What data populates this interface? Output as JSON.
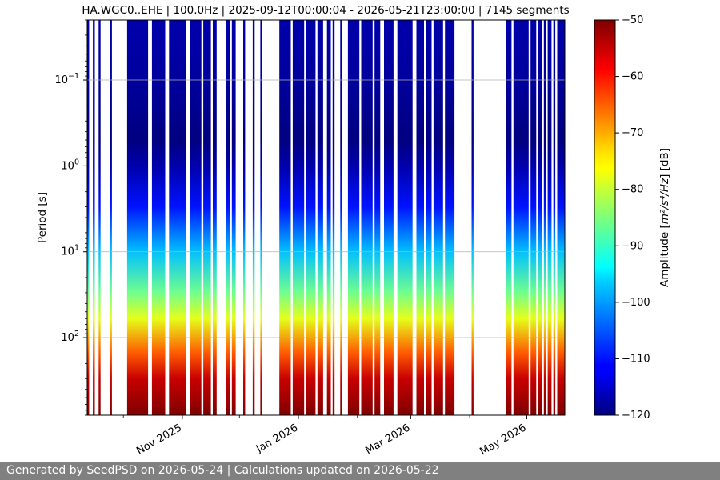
{
  "chart_data": {
    "type": "heatmap",
    "title": "HA.WGC0..EHE | 100.0Hz | 2025-09-12T00:00:04 - 2026-05-21T23:00:00 | 7145 segments",
    "xlabel": "",
    "ylabel": "Period [s]",
    "x_range": [
      "2025-09-12",
      "2026-05-21"
    ],
    "x_ticks": [
      {
        "date": "2025-11-01",
        "label": "Nov 2025"
      },
      {
        "date": "2026-01-01",
        "label": "Jan 2026"
      },
      {
        "date": "2026-03-01",
        "label": "Mar 2026"
      },
      {
        "date": "2026-05-01",
        "label": "May 2026"
      }
    ],
    "y_scale": "log",
    "y_inverted": true,
    "y_range": [
      0.02,
      800
    ],
    "y_ticks": [
      {
        "value": 0.1,
        "base": "10",
        "exp": "−1"
      },
      {
        "value": 1,
        "base": "10",
        "exp": "0"
      },
      {
        "value": 10,
        "base": "10",
        "exp": "1"
      },
      {
        "value": 100,
        "base": "10",
        "exp": "2"
      }
    ],
    "grid": true,
    "data_segments": [
      [
        "2025-09-12",
        "2025-09-13"
      ],
      [
        "2025-09-15",
        "2025-09-16"
      ],
      [
        "2025-09-18",
        "2025-09-19"
      ],
      [
        "2025-09-24",
        "2025-09-25"
      ],
      [
        "2025-10-03",
        "2025-10-14"
      ],
      [
        "2025-10-16",
        "2025-10-23"
      ],
      [
        "2025-10-25",
        "2025-11-03"
      ],
      [
        "2025-11-05",
        "2025-11-11"
      ],
      [
        "2025-11-12",
        "2025-11-16"
      ],
      [
        "2025-11-17",
        "2025-11-19"
      ],
      [
        "2025-11-24",
        "2025-11-26"
      ],
      [
        "2025-11-27",
        "2025-11-29"
      ],
      [
        "2025-12-03",
        "2025-12-04"
      ],
      [
        "2025-12-08",
        "2025-12-09"
      ],
      [
        "2025-12-12",
        "2025-12-13"
      ],
      [
        "2025-12-22",
        "2025-12-28"
      ],
      [
        "2025-12-29",
        "2026-01-04"
      ],
      [
        "2026-01-05",
        "2026-01-10"
      ],
      [
        "2026-01-11",
        "2026-01-14"
      ],
      [
        "2026-01-16",
        "2026-01-18"
      ],
      [
        "2026-01-19",
        "2026-01-20"
      ],
      [
        "2026-01-23",
        "2026-01-24"
      ],
      [
        "2026-01-27",
        "2026-02-02"
      ],
      [
        "2026-02-03",
        "2026-02-09"
      ],
      [
        "2026-02-10",
        "2026-02-13"
      ],
      [
        "2026-02-15",
        "2026-02-20"
      ],
      [
        "2026-02-22",
        "2026-03-02"
      ],
      [
        "2026-03-04",
        "2026-03-08"
      ],
      [
        "2026-03-09",
        "2026-03-12"
      ],
      [
        "2026-03-13",
        "2026-03-18"
      ],
      [
        "2026-03-19",
        "2026-03-24"
      ],
      [
        "2026-04-02",
        "2026-04-03"
      ],
      [
        "2026-04-20",
        "2026-04-23"
      ],
      [
        "2026-04-24",
        "2026-05-02"
      ],
      [
        "2026-05-03",
        "2026-05-06"
      ],
      [
        "2026-05-07",
        "2026-05-09"
      ],
      [
        "2026-05-10",
        "2026-05-11"
      ],
      [
        "2026-05-12",
        "2026-05-14"
      ],
      [
        "2026-05-15",
        "2026-05-16"
      ],
      [
        "2026-05-17",
        "2026-05-21"
      ]
    ],
    "amplitude_profile": [
      {
        "period": 0.02,
        "db": -117
      },
      {
        "period": 0.1,
        "db": -118
      },
      {
        "period": 0.5,
        "db": -120
      },
      {
        "period": 1,
        "db": -117
      },
      {
        "period": 3,
        "db": -110
      },
      {
        "period": 10,
        "db": -98
      },
      {
        "period": 30,
        "db": -86
      },
      {
        "period": 60,
        "db": -78
      },
      {
        "period": 150,
        "db": -65
      },
      {
        "period": 300,
        "db": -55
      },
      {
        "period": 800,
        "db": -50
      }
    ],
    "colorbar": {
      "label": "Amplitude [m²/s⁴/Hz] [dB]",
      "label_main": "Amplitude [",
      "label_units": "m²/s⁴/Hz",
      "label_end": "] [dB]",
      "min": -120,
      "max": -50,
      "ticks": [
        "−50",
        "−60",
        "−70",
        "−80",
        "−90",
        "−100",
        "−110",
        "−120"
      ],
      "colormap": "jet"
    }
  },
  "footer": "Generated by SeedPSD on 2026-05-24 | Calculations updated on 2026-05-22"
}
